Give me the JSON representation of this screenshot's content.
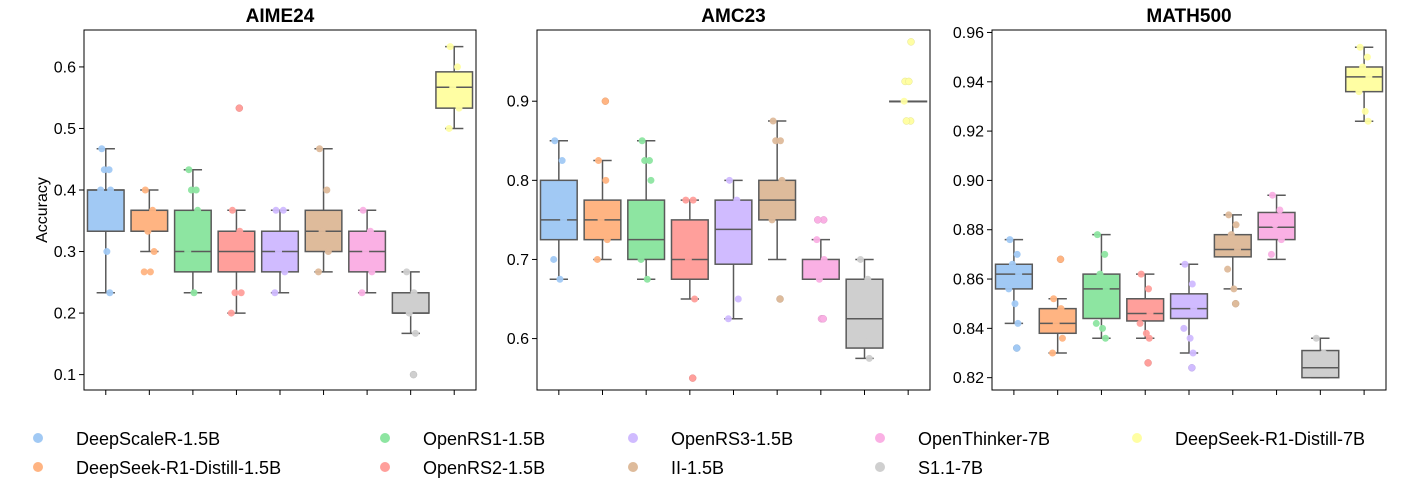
{
  "chart_data": {
    "type": "box",
    "ylabel": "Accuracy",
    "series": [
      {
        "name": "DeepScaleR-1.5B",
        "color": "#a1c9f4"
      },
      {
        "name": "DeepSeek-R1-Distill-1.5B",
        "color": "#ffb482"
      },
      {
        "name": "OpenRS1-1.5B",
        "color": "#8de5a1"
      },
      {
        "name": "OpenRS2-1.5B",
        "color": "#ff9f9b"
      },
      {
        "name": "OpenRS3-1.5B",
        "color": "#d0bbff"
      },
      {
        "name": "II-1.5B",
        "color": "#debb9b"
      },
      {
        "name": "OpenThinker-7B",
        "color": "#fab0e4"
      },
      {
        "name": "S1.1-7B",
        "color": "#cfcfcf"
      },
      {
        "name": "DeepSeek-R1-Distill-7B",
        "color": "#fffea3"
      }
    ],
    "legend": {
      "position": "bottom",
      "order": [
        0,
        1,
        2,
        3,
        4,
        5,
        6,
        7,
        8
      ]
    },
    "panels": [
      {
        "title": "AIME24",
        "ylim": [
          0.075,
          0.66
        ],
        "yticks": [
          0.1,
          0.2,
          0.3,
          0.4,
          0.5,
          0.6
        ],
        "ytick_labels": [
          "0.1",
          "0.2",
          "0.3",
          "0.4",
          "0.5",
          "0.6"
        ],
        "boxes": [
          {
            "q1": 0.333,
            "median": 0.4,
            "q3": 0.4,
            "lower": 0.233,
            "upper": 0.467,
            "outliers": [],
            "points": [
              0.467,
              0.433,
              0.433,
              0.4,
              0.4,
              0.3,
              0.233
            ]
          },
          {
            "q1": 0.333,
            "median": 0.367,
            "q3": 0.367,
            "lower": 0.3,
            "upper": 0.4,
            "outliers": [],
            "points": [
              0.4,
              0.367,
              0.333,
              0.3,
              0.267,
              0.267
            ]
          },
          {
            "q1": 0.267,
            "median": 0.3,
            "q3": 0.367,
            "lower": 0.233,
            "upper": 0.433,
            "outliers": [],
            "points": [
              0.433,
              0.4,
              0.4,
              0.367,
              0.3,
              0.233
            ]
          },
          {
            "q1": 0.267,
            "median": 0.3,
            "q3": 0.333,
            "lower": 0.2,
            "upper": 0.367,
            "outliers": [
              0.533
            ],
            "points": [
              0.367,
              0.333,
              0.233,
              0.233,
              0.2
            ]
          },
          {
            "q1": 0.267,
            "median": 0.3,
            "q3": 0.333,
            "lower": 0.233,
            "upper": 0.367,
            "outliers": [],
            "points": [
              0.367,
              0.367,
              0.3,
              0.267,
              0.233
            ]
          },
          {
            "q1": 0.3,
            "median": 0.333,
            "q3": 0.367,
            "lower": 0.267,
            "upper": 0.467,
            "outliers": [],
            "points": [
              0.467,
              0.4,
              0.333,
              0.3,
              0.267
            ]
          },
          {
            "q1": 0.267,
            "median": 0.3,
            "q3": 0.333,
            "lower": 0.233,
            "upper": 0.367,
            "outliers": [],
            "points": [
              0.367,
              0.333,
              0.3,
              0.267,
              0.233
            ]
          },
          {
            "q1": 0.2,
            "median": 0.2,
            "q3": 0.233,
            "lower": 0.167,
            "upper": 0.267,
            "outliers": [
              0.1
            ],
            "points": [
              0.267,
              0.233,
              0.2,
              0.167
            ]
          },
          {
            "q1": 0.533,
            "median": 0.567,
            "q3": 0.592,
            "lower": 0.5,
            "upper": 0.633,
            "outliers": [],
            "points": [
              0.633,
              0.6,
              0.567,
              0.533,
              0.5
            ]
          }
        ]
      },
      {
        "title": "AMC23",
        "ylim": [
          0.535,
          0.99
        ],
        "yticks": [
          0.6,
          0.7,
          0.8,
          0.9
        ],
        "ytick_labels": [
          "0.6",
          "0.7",
          "0.8",
          "0.9"
        ],
        "boxes": [
          {
            "q1": 0.725,
            "median": 0.75,
            "q3": 0.8,
            "lower": 0.675,
            "upper": 0.85,
            "outliers": [],
            "points": [
              0.85,
              0.825,
              0.775,
              0.75,
              0.7,
              0.675
            ]
          },
          {
            "q1": 0.725,
            "median": 0.75,
            "q3": 0.775,
            "lower": 0.7,
            "upper": 0.825,
            "outliers": [
              0.9
            ],
            "points": [
              0.825,
              0.8,
              0.75,
              0.725,
              0.7
            ]
          },
          {
            "q1": 0.7,
            "median": 0.725,
            "q3": 0.775,
            "lower": 0.675,
            "upper": 0.85,
            "outliers": [],
            "points": [
              0.85,
              0.825,
              0.825,
              0.8,
              0.7,
              0.675
            ]
          },
          {
            "q1": 0.675,
            "median": 0.7,
            "q3": 0.75,
            "lower": 0.65,
            "upper": 0.775,
            "outliers": [
              0.55
            ],
            "points": [
              0.775,
              0.775,
              0.7,
              0.65
            ]
          },
          {
            "q1": 0.694,
            "median": 0.738,
            "q3": 0.775,
            "lower": 0.625,
            "upper": 0.8,
            "outliers": [],
            "points": [
              0.8,
              0.775,
              0.7,
              0.65,
              0.625
            ]
          },
          {
            "q1": 0.75,
            "median": 0.775,
            "q3": 0.8,
            "lower": 0.7,
            "upper": 0.875,
            "outliers": [
              0.65
            ],
            "points": [
              0.875,
              0.85,
              0.85,
              0.8,
              0.75
            ]
          },
          {
            "q1": 0.675,
            "median": 0.675,
            "q3": 0.7,
            "lower": 0.675,
            "upper": 0.725,
            "outliers": [
              0.75,
              0.75,
              0.625,
              0.625
            ],
            "points": [
              0.725,
              0.7,
              0.675
            ]
          },
          {
            "q1": 0.588,
            "median": 0.625,
            "q3": 0.675,
            "lower": 0.575,
            "upper": 0.7,
            "outliers": [],
            "points": [
              0.7,
              0.675,
              0.6,
              0.575
            ]
          },
          {
            "q1": 0.9,
            "median": 0.9,
            "q3": 0.9,
            "lower": 0.9,
            "upper": 0.9,
            "outliers": [
              0.975,
              0.925,
              0.925,
              0.875,
              0.875
            ],
            "points": [
              0.9
            ]
          }
        ]
      },
      {
        "title": "MATH500",
        "ylim": [
          0.815,
          0.961
        ],
        "yticks": [
          0.82,
          0.84,
          0.86,
          0.88,
          0.9,
          0.92,
          0.94,
          0.96
        ],
        "ytick_labels": [
          "0.82",
          "0.84",
          "0.86",
          "0.88",
          "0.90",
          "0.92",
          "0.94",
          "0.96"
        ],
        "boxes": [
          {
            "q1": 0.856,
            "median": 0.862,
            "q3": 0.866,
            "lower": 0.842,
            "upper": 0.876,
            "outliers": [
              0.832
            ],
            "points": [
              0.876,
              0.87,
              0.866,
              0.862,
              0.856,
              0.85,
              0.842
            ]
          },
          {
            "q1": 0.838,
            "median": 0.842,
            "q3": 0.848,
            "lower": 0.83,
            "upper": 0.852,
            "outliers": [
              0.868
            ],
            "points": [
              0.852,
              0.848,
              0.842,
              0.836,
              0.83
            ]
          },
          {
            "q1": 0.844,
            "median": 0.856,
            "q3": 0.862,
            "lower": 0.836,
            "upper": 0.878,
            "outliers": [],
            "points": [
              0.878,
              0.87,
              0.862,
              0.856,
              0.842,
              0.84,
              0.836
            ]
          },
          {
            "q1": 0.843,
            "median": 0.846,
            "q3": 0.852,
            "lower": 0.836,
            "upper": 0.862,
            "outliers": [
              0.826
            ],
            "points": [
              0.862,
              0.856,
              0.85,
              0.846,
              0.842,
              0.838,
              0.836
            ]
          },
          {
            "q1": 0.844,
            "median": 0.848,
            "q3": 0.854,
            "lower": 0.83,
            "upper": 0.866,
            "outliers": [
              0.824
            ],
            "points": [
              0.866,
              0.858,
              0.852,
              0.848,
              0.84,
              0.836,
              0.83
            ]
          },
          {
            "q1": 0.869,
            "median": 0.872,
            "q3": 0.878,
            "lower": 0.856,
            "upper": 0.886,
            "outliers": [
              0.85
            ],
            "points": [
              0.886,
              0.882,
              0.878,
              0.872,
              0.864,
              0.856
            ]
          },
          {
            "q1": 0.876,
            "median": 0.881,
            "q3": 0.887,
            "lower": 0.868,
            "upper": 0.894,
            "outliers": [],
            "points": [
              0.894,
              0.888,
              0.882,
              0.876,
              0.87
            ]
          },
          {
            "q1": 0.82,
            "median": 0.824,
            "q3": 0.831,
            "lower": 0.82,
            "upper": 0.836,
            "outliers": [],
            "points": [
              0.836,
              0.83,
              0.826,
              0.822
            ]
          },
          {
            "q1": 0.936,
            "median": 0.942,
            "q3": 0.946,
            "lower": 0.924,
            "upper": 0.954,
            "outliers": [],
            "points": [
              0.954,
              0.95,
              0.946,
              0.942,
              0.936,
              0.928,
              0.924
            ]
          }
        ]
      }
    ]
  }
}
